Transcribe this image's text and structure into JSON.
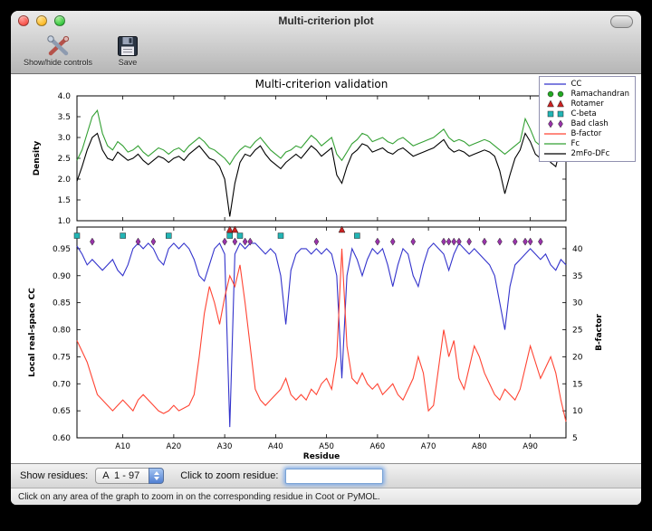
{
  "window": {
    "title": "Multi-criterion plot"
  },
  "toolbar": {
    "items": [
      {
        "label": "Show/hide controls",
        "icon": "tools-icon"
      },
      {
        "label": "Save",
        "icon": "save-icon"
      }
    ]
  },
  "controls": {
    "show_residues_label": "Show residues:",
    "residue_range_value": "A  1 - 97",
    "zoom_label": "Click to zoom residue:",
    "zoom_input_value": ""
  },
  "status": {
    "text": "Click on any area of the graph to zoom in on the corresponding residue in Coot or PyMOL."
  },
  "legend": {
    "entries": [
      {
        "label": "CC",
        "type": "line",
        "color": "#3333cc"
      },
      {
        "label": "Ramachandran",
        "type": "circle",
        "color": "#22aa22"
      },
      {
        "label": "Rotamer",
        "type": "triangle",
        "color": "#cc2222"
      },
      {
        "label": "C-beta",
        "type": "square",
        "color": "#22b5b5"
      },
      {
        "label": "Bad clash",
        "type": "diamond",
        "color": "#9933aa"
      },
      {
        "label": "B-factor",
        "type": "line",
        "color": "#ff4433"
      },
      {
        "label": "Fc",
        "type": "line",
        "color": "#33a033"
      },
      {
        "label": "2mFo-DFc",
        "type": "line",
        "color": "#000000"
      }
    ]
  },
  "chart_data": [
    {
      "type": "line",
      "title": "Multi-criterion validation",
      "ylabel": "Density",
      "ylim": [
        1.0,
        4.0
      ],
      "yticks": [
        {
          "v": 1.0,
          "label": "1.0"
        },
        {
          "v": 1.5,
          "label": "1.5"
        },
        {
          "v": 2.0,
          "label": "2.0"
        },
        {
          "v": 2.5,
          "label": "2.5"
        },
        {
          "v": 3.0,
          "label": "3.0"
        },
        {
          "v": 3.5,
          "label": "3.5"
        },
        {
          "v": 4.0,
          "label": "4.0"
        }
      ],
      "x_range": [
        1,
        97
      ],
      "series": [
        {
          "name": "Fc",
          "color": "#33a033",
          "values": [
            2.45,
            2.7,
            3.1,
            3.5,
            3.65,
            3.1,
            2.8,
            2.7,
            2.9,
            2.8,
            2.65,
            2.7,
            2.8,
            2.65,
            2.55,
            2.65,
            2.75,
            2.7,
            2.6,
            2.7,
            2.75,
            2.65,
            2.8,
            2.9,
            3.0,
            2.9,
            2.75,
            2.7,
            2.6,
            2.5,
            2.35,
            2.55,
            2.7,
            2.8,
            2.75,
            2.9,
            3.0,
            2.85,
            2.7,
            2.6,
            2.5,
            2.65,
            2.7,
            2.8,
            2.75,
            2.9,
            3.05,
            2.95,
            2.8,
            2.9,
            3.0,
            2.6,
            2.45,
            2.65,
            2.85,
            2.95,
            3.1,
            3.05,
            2.9,
            2.95,
            3.0,
            2.9,
            2.85,
            2.95,
            3.0,
            2.9,
            2.8,
            2.85,
            2.9,
            2.95,
            3.0,
            3.1,
            3.2,
            3.0,
            2.9,
            2.95,
            2.9,
            2.8,
            2.85,
            2.9,
            2.95,
            2.9,
            2.8,
            2.7,
            2.6,
            2.7,
            2.8,
            2.9,
            3.45,
            3.2,
            2.9,
            2.8,
            2.9,
            2.7,
            2.6,
            3.1,
            3.35
          ]
        },
        {
          "name": "2mFo-DFc",
          "color": "#000000",
          "values": [
            1.95,
            2.3,
            2.7,
            3.0,
            3.1,
            2.7,
            2.5,
            2.45,
            2.65,
            2.55,
            2.45,
            2.5,
            2.6,
            2.45,
            2.35,
            2.45,
            2.55,
            2.5,
            2.4,
            2.5,
            2.55,
            2.45,
            2.6,
            2.7,
            2.8,
            2.65,
            2.5,
            2.45,
            2.3,
            2.0,
            1.1,
            1.9,
            2.4,
            2.6,
            2.55,
            2.7,
            2.8,
            2.6,
            2.45,
            2.35,
            2.25,
            2.4,
            2.5,
            2.6,
            2.5,
            2.65,
            2.8,
            2.7,
            2.55,
            2.65,
            2.75,
            2.1,
            1.9,
            2.3,
            2.6,
            2.7,
            2.85,
            2.8,
            2.65,
            2.7,
            2.75,
            2.65,
            2.6,
            2.7,
            2.75,
            2.65,
            2.55,
            2.6,
            2.65,
            2.7,
            2.75,
            2.85,
            2.95,
            2.75,
            2.65,
            2.7,
            2.65,
            2.55,
            2.6,
            2.65,
            2.7,
            2.65,
            2.55,
            2.2,
            1.65,
            2.1,
            2.5,
            2.7,
            3.1,
            2.9,
            2.6,
            2.5,
            2.6,
            2.4,
            2.3,
            2.8,
            3.0
          ]
        }
      ]
    },
    {
      "type": "line+markers",
      "xlabel": "Residue",
      "ylabel_left": "Local real-space CC",
      "ylabel_right": "B-factor",
      "ylim_left": [
        0.6,
        0.99
      ],
      "ylim_right": [
        5,
        44
      ],
      "yticks_left": [
        {
          "v": 0.6,
          "label": "0.60"
        },
        {
          "v": 0.65,
          "label": "0.65"
        },
        {
          "v": 0.7,
          "label": "0.70"
        },
        {
          "v": 0.75,
          "label": "0.75"
        },
        {
          "v": 0.8,
          "label": "0.80"
        },
        {
          "v": 0.85,
          "label": "0.85"
        },
        {
          "v": 0.9,
          "label": "0.90"
        },
        {
          "v": 0.95,
          "label": "0.95"
        }
      ],
      "yticks_right": [
        {
          "v": 5,
          "label": "5"
        },
        {
          "v": 10,
          "label": "10"
        },
        {
          "v": 15,
          "label": "15"
        },
        {
          "v": 20,
          "label": "20"
        },
        {
          "v": 25,
          "label": "25"
        },
        {
          "v": 30,
          "label": "30"
        },
        {
          "v": 35,
          "label": "35"
        },
        {
          "v": 40,
          "label": "40"
        }
      ],
      "xticks": [
        {
          "residue": 10,
          "label": "A10"
        },
        {
          "residue": 20,
          "label": "A20"
        },
        {
          "residue": 30,
          "label": "A30"
        },
        {
          "residue": 40,
          "label": "A40"
        },
        {
          "residue": 50,
          "label": "A50"
        },
        {
          "residue": 60,
          "label": "A60"
        },
        {
          "residue": 70,
          "label": "A70"
        },
        {
          "residue": 80,
          "label": "A80"
        },
        {
          "residue": 90,
          "label": "A90"
        }
      ],
      "x_range": [
        1,
        97
      ],
      "series": [
        {
          "name": "CC",
          "axis": "left",
          "color": "#3333cc",
          "values": [
            0.955,
            0.94,
            0.92,
            0.93,
            0.92,
            0.91,
            0.92,
            0.93,
            0.91,
            0.9,
            0.92,
            0.95,
            0.96,
            0.95,
            0.96,
            0.95,
            0.93,
            0.92,
            0.95,
            0.96,
            0.95,
            0.96,
            0.95,
            0.93,
            0.9,
            0.89,
            0.92,
            0.95,
            0.96,
            0.94,
            0.62,
            0.94,
            0.96,
            0.95,
            0.96,
            0.96,
            0.95,
            0.94,
            0.95,
            0.94,
            0.9,
            0.81,
            0.91,
            0.94,
            0.95,
            0.95,
            0.94,
            0.95,
            0.94,
            0.95,
            0.94,
            0.9,
            0.71,
            0.9,
            0.95,
            0.93,
            0.9,
            0.93,
            0.95,
            0.94,
            0.95,
            0.92,
            0.88,
            0.92,
            0.95,
            0.94,
            0.9,
            0.88,
            0.92,
            0.95,
            0.96,
            0.95,
            0.94,
            0.91,
            0.94,
            0.96,
            0.95,
            0.94,
            0.95,
            0.94,
            0.93,
            0.92,
            0.9,
            0.85,
            0.8,
            0.88,
            0.92,
            0.93,
            0.94,
            0.95,
            0.94,
            0.93,
            0.94,
            0.92,
            0.91,
            0.93,
            0.92
          ]
        },
        {
          "name": "B-factor",
          "axis": "right",
          "color": "#ff4433",
          "values": [
            23,
            21,
            19,
            16,
            13,
            12,
            11,
            10,
            11,
            12,
            11,
            10,
            12,
            13,
            12,
            11,
            10,
            9.5,
            10,
            11,
            10,
            10.5,
            11,
            13,
            20,
            28,
            33,
            30,
            26,
            31,
            35,
            33,
            37,
            30,
            22,
            14,
            12,
            11,
            12,
            13,
            14,
            16,
            13,
            12,
            13,
            12,
            14,
            13,
            15,
            16,
            14,
            20,
            40,
            22,
            16,
            15,
            17,
            15,
            14,
            15,
            13,
            14,
            15,
            13,
            12,
            14,
            16,
            20,
            17,
            10,
            11,
            18,
            25,
            20,
            23,
            16,
            14,
            18,
            22,
            20,
            17,
            15,
            13,
            12,
            14,
            13,
            12,
            14,
            18,
            22,
            19,
            16,
            18,
            20,
            17,
            12,
            8
          ]
        }
      ],
      "markers": [
        {
          "name": "Rotamer",
          "shape": "triangle",
          "color": "#cc2222",
          "y": 0.985,
          "residues": [
            31,
            32,
            53
          ]
        },
        {
          "name": "C-beta",
          "shape": "square",
          "color": "#22b5b5",
          "y": 0.974,
          "residues": [
            1,
            10,
            19,
            31,
            33,
            41,
            56
          ]
        },
        {
          "name": "Bad clash",
          "shape": "diamond",
          "color": "#9933aa",
          "y": 0.963,
          "residues": [
            4,
            13,
            16,
            30,
            32,
            34,
            35,
            48,
            60,
            63,
            67,
            73,
            74,
            75,
            76,
            78,
            81,
            84,
            87,
            89,
            90,
            92
          ]
        },
        {
          "name": "Ramachandran",
          "shape": "circle",
          "color": "#22aa22",
          "y": 0.985,
          "residues": []
        }
      ]
    }
  ]
}
